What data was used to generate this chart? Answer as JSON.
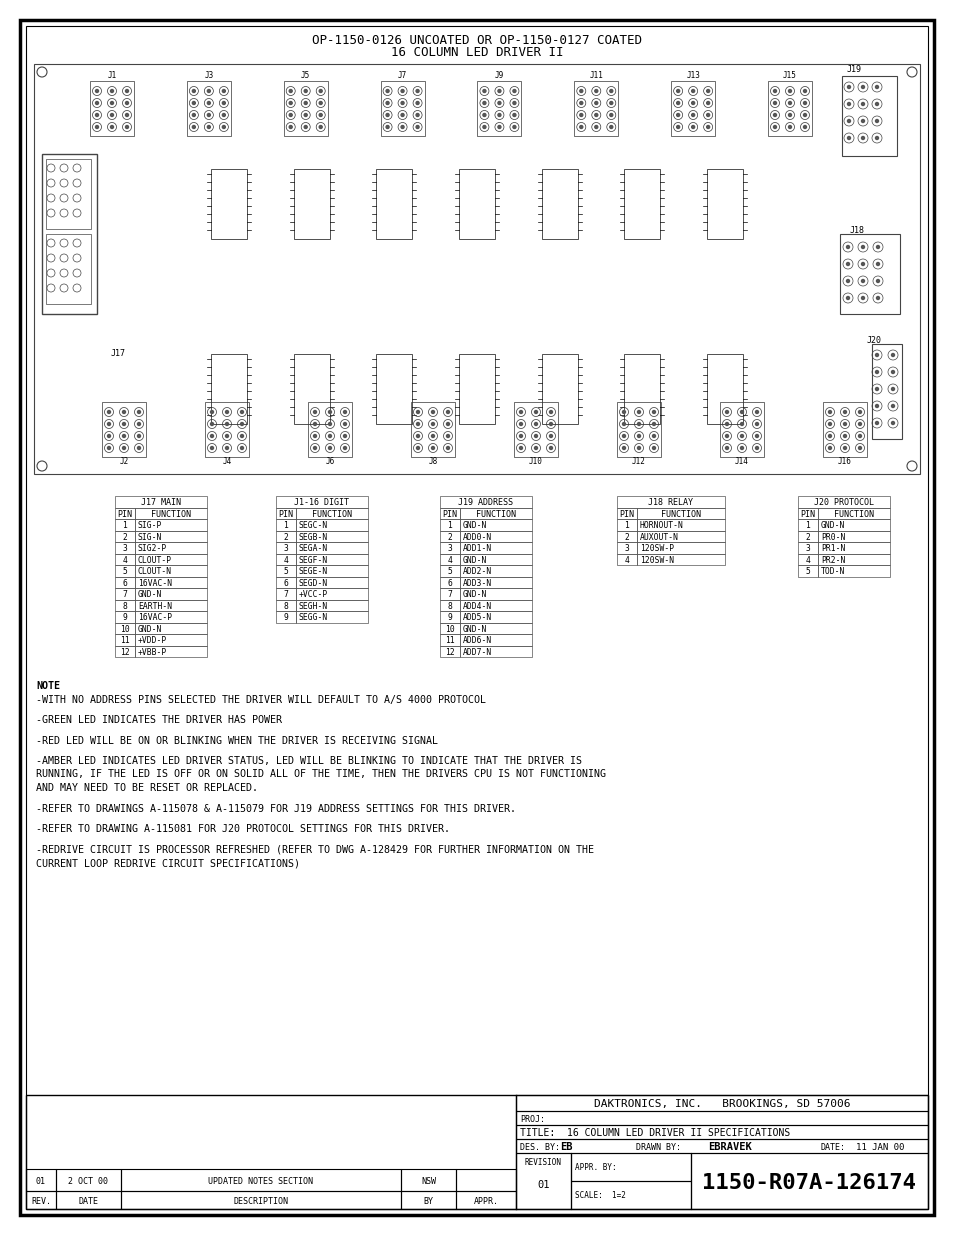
{
  "bg_color": "#ffffff",
  "title_line1": "OP-1150-0126 UNCOATED OR OP-1150-0127 COATED",
  "title_line2": "16 COLUMN LED DRIVER II",
  "tables": {
    "j17_main": {
      "title": "J17 MAIN",
      "headers": [
        "PIN",
        "FUNCTION"
      ],
      "rows": [
        [
          "1",
          "SIG-P"
        ],
        [
          "2",
          "SIG-N"
        ],
        [
          "3",
          "SIG2-P"
        ],
        [
          "4",
          "CLOUT-P"
        ],
        [
          "5",
          "CLOUT-N"
        ],
        [
          "6",
          "16VAC-N"
        ],
        [
          "7",
          "GND-N"
        ],
        [
          "8",
          "EARTH-N"
        ],
        [
          "9",
          "16VAC-P"
        ],
        [
          "10",
          "GND-N"
        ],
        [
          "11",
          "+VDD-P"
        ],
        [
          "12",
          "+VBB-P"
        ]
      ]
    },
    "j1_16_digit": {
      "title": "J1-16 DIGIT",
      "headers": [
        "PIN",
        "FUNCTION"
      ],
      "rows": [
        [
          "1",
          "SEGC-N"
        ],
        [
          "2",
          "SEGB-N"
        ],
        [
          "3",
          "SEGA-N"
        ],
        [
          "4",
          "SEGF-N"
        ],
        [
          "5",
          "SEGE-N"
        ],
        [
          "6",
          "SEGD-N"
        ],
        [
          "7",
          "+VCC-P"
        ],
        [
          "8",
          "SEGH-N"
        ],
        [
          "9",
          "SEGG-N"
        ]
      ]
    },
    "j19_address": {
      "title": "J19 ADDRESS",
      "headers": [
        "PIN",
        "FUNCTION"
      ],
      "rows": [
        [
          "1",
          "GND-N"
        ],
        [
          "2",
          "ADD0-N"
        ],
        [
          "3",
          "ADD1-N"
        ],
        [
          "4",
          "GND-N"
        ],
        [
          "5",
          "ADD2-N"
        ],
        [
          "6",
          "ADD3-N"
        ],
        [
          "7",
          "GND-N"
        ],
        [
          "8",
          "ADD4-N"
        ],
        [
          "9",
          "ADD5-N"
        ],
        [
          "10",
          "GND-N"
        ],
        [
          "11",
          "ADD6-N"
        ],
        [
          "12",
          "ADD7-N"
        ]
      ]
    },
    "j18_relay": {
      "title": "J18 RELAY",
      "headers": [
        "PIN",
        "FUNCTION"
      ],
      "rows": [
        [
          "1",
          "HORNOUT-N"
        ],
        [
          "2",
          "AUXOUT-N"
        ],
        [
          "3",
          "120SW-P"
        ],
        [
          "4",
          "120SW-N"
        ]
      ]
    },
    "j20_protocol": {
      "title": "J20 PROTOCOL",
      "headers": [
        "PIN",
        "FUNCTION"
      ],
      "rows": [
        [
          "1",
          "GND-N"
        ],
        [
          "2",
          "PR0-N"
        ],
        [
          "3",
          "PR1-N"
        ],
        [
          "4",
          "PR2-N"
        ],
        [
          "5",
          "TOD-N"
        ]
      ]
    }
  },
  "notes": [
    [
      "NOTE",
      true
    ],
    [
      "-WITH NO ADDRESS PINS SELECTED THE DRIVER WILL DEFAULT TO A/S 4000 PROTOCOL",
      false
    ],
    [
      "",
      false
    ],
    [
      "-GREEN LED INDICATES THE DRIVER HAS POWER",
      false
    ],
    [
      "",
      false
    ],
    [
      "-RED LED WILL BE ON OR BLINKING WHEN THE DRIVER IS RECEIVING SIGNAL",
      false
    ],
    [
      "",
      false
    ],
    [
      "-AMBER LED INDICATES LED DRIVER STATUS, LED WILL BE BLINKING TO INDICATE THAT THE DRIVER IS",
      false
    ],
    [
      "RUNNING, IF THE LED IS OFF OR ON SOLID ALL OF THE TIME, THEN THE DRIVERS CPU IS NOT FUNCTIONING",
      false
    ],
    [
      "AND MAY NEED TO BE RESET OR REPLACED.",
      false
    ],
    [
      "",
      false
    ],
    [
      "-REFER TO DRAWINGS A-115078 & A-115079 FOR J19 ADDRESS SETTINGS FOR THIS DRIVER.",
      false
    ],
    [
      "",
      false
    ],
    [
      "-REFER TO DRAWING A-115081 FOR J20 PROTOCOL SETTINGS FOR THIS DRIVER.",
      false
    ],
    [
      "",
      false
    ],
    [
      "-REDRIVE CIRCUIT IS PROCESSOR REFRESHED (REFER TO DWG A-128429 FOR FURTHER INFORMATION ON THE",
      false
    ],
    [
      "CURRENT LOOP REDRIVE CIRCUIT SPECIFICATIONS)",
      false
    ]
  ],
  "title_block": {
    "company": "DAKTRONICS, INC.   BROOKINGS, SD 57006",
    "title_value": "16 COLUMN LED DRIVER II SPECIFICATIONS",
    "des_by_label": "DES. BY:",
    "des_by_value": "EB",
    "drawn_by_label": "DRAWN BY:",
    "drawn_by_value": "EBRAVEK",
    "date_label": "DATE:",
    "date_value": "11 JAN 00",
    "revision_label": "REVISION",
    "revision_value": "01",
    "appr_by_label": "APPR. BY:",
    "scale_label": "SCALE:",
    "scale_value": "1=2",
    "drawing_number": "1150-R07A-126174",
    "rev_row": {
      "rev": "01",
      "date": "2 OCT 00",
      "description": "UPDATED NOTES SECTION",
      "by": "NSW"
    },
    "rev_header": [
      "REV.",
      "DATE",
      "DESCRIPTION",
      "BY",
      "APPR."
    ]
  },
  "pcb": {
    "j_top_labels": [
      "J1",
      "J3",
      "J5",
      "J7",
      "J9",
      "J11",
      "J13",
      "J15"
    ],
    "j_bot_labels": [
      "J2",
      "J4",
      "J6",
      "J8",
      "J10",
      "J12",
      "J14",
      "J16"
    ],
    "j19_label": "J19",
    "j18_label": "J18",
    "j17_label": "J17",
    "j20_label": "J20"
  }
}
